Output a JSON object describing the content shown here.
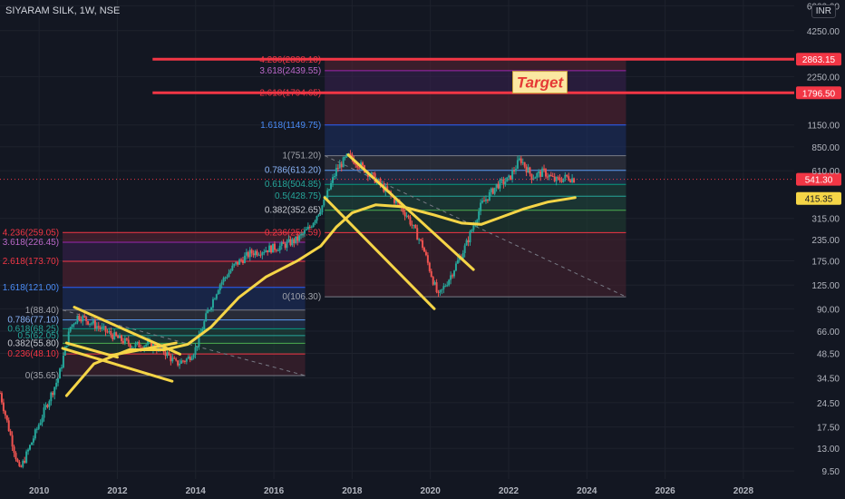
{
  "header": {
    "symbol": "SIYARAM SILK, 1W, NSE",
    "currency": "INR"
  },
  "colors": {
    "background": "#131722",
    "grid": "#1e222d",
    "candle_up": "#26a69a",
    "candle_down": "#ef5350",
    "annotation": "#f5d547",
    "target_line": "#f23645",
    "price_tag": "#f23645",
    "ma_tag": "#f5d547"
  },
  "chart_data": {
    "type": "candlestick",
    "scale": "log",
    "xlim": [
      2009.0,
      2029.3
    ],
    "ylim": [
      8.5,
      6500
    ],
    "x_ticks": [
      "2010",
      "2012",
      "2014",
      "2016",
      "2018",
      "2020",
      "2022",
      "2024",
      "2026",
      "2028"
    ],
    "x_tick_values": [
      2010,
      2012,
      2014,
      2016,
      2018,
      2020,
      2022,
      2024,
      2026,
      2028
    ],
    "y_ticks": [
      "6000.00",
      "4250.00",
      "2250.00",
      "1150.00",
      "850.00",
      "610.00",
      "315.00",
      "235.00",
      "175.00",
      "125.00",
      "90.00",
      "66.00",
      "48.50",
      "34.50",
      "24.50",
      "17.50",
      "13.00",
      "9.50"
    ],
    "y_tick_values": [
      6000,
      4250,
      2250,
      1150,
      850,
      610,
      315,
      235,
      175,
      125,
      90,
      66,
      48.5,
      34.5,
      24.5,
      17.5,
      13,
      9.5
    ],
    "price_path": [
      [
        2009.0,
        28
      ],
      [
        2009.2,
        18
      ],
      [
        2009.5,
        9.5
      ],
      [
        2009.8,
        14
      ],
      [
        2010.2,
        24
      ],
      [
        2010.5,
        35
      ],
      [
        2010.8,
        70
      ],
      [
        2011.0,
        82
      ],
      [
        2011.3,
        75
      ],
      [
        2011.6,
        68
      ],
      [
        2012.0,
        60
      ],
      [
        2012.4,
        54
      ],
      [
        2012.8,
        55
      ],
      [
        2013.2,
        50
      ],
      [
        2013.5,
        42
      ],
      [
        2013.8,
        45
      ],
      [
        2014.0,
        52
      ],
      [
        2014.3,
        85
      ],
      [
        2014.6,
        125
      ],
      [
        2015.0,
        165
      ],
      [
        2015.4,
        195
      ],
      [
        2015.8,
        205
      ],
      [
        2016.2,
        215
      ],
      [
        2016.6,
        235
      ],
      [
        2016.9,
        275
      ],
      [
        2017.3,
        400
      ],
      [
        2017.6,
        620
      ],
      [
        2017.9,
        751
      ],
      [
        2018.2,
        660
      ],
      [
        2018.6,
        540
      ],
      [
        2019.0,
        430
      ],
      [
        2019.4,
        330
      ],
      [
        2019.8,
        215
      ],
      [
        2020.2,
        106
      ],
      [
        2020.5,
        140
      ],
      [
        2020.9,
        215
      ],
      [
        2021.3,
        380
      ],
      [
        2021.7,
        500
      ],
      [
        2022.0,
        540
      ],
      [
        2022.3,
        720
      ],
      [
        2022.6,
        560
      ],
      [
        2022.9,
        600
      ],
      [
        2023.2,
        530
      ],
      [
        2023.5,
        560
      ],
      [
        2023.7,
        541
      ]
    ],
    "fib_levels_1": {
      "x_range": [
        2010.6,
        2016.8
      ],
      "levels": [
        {
          "label": "4.236(259.05)",
          "value": 259.05
        },
        {
          "label": "3.618(226.45)",
          "value": 226.45
        },
        {
          "label": "2.618(173.70)",
          "value": 173.7
        },
        {
          "label": "1.618(121.00)",
          "value": 121.0
        },
        {
          "label": "1(88.40)",
          "value": 88.4
        },
        {
          "label": "0.786(77.10)",
          "value": 77.1
        },
        {
          "label": "0.618(68.25)",
          "value": 68.25
        },
        {
          "label": "0.5(62.05)",
          "value": 62.05
        },
        {
          "label": "0.382(55.80)",
          "value": 55.8
        },
        {
          "label": "0.236(48.10)",
          "value": 48.1
        },
        {
          "label": "0(35.65)",
          "value": 35.65
        }
      ]
    },
    "fib_levels_2": {
      "x_range": [
        2017.3,
        2025.0
      ],
      "levels": [
        {
          "label": "4.236(2838.10)",
          "value": 2838.1
        },
        {
          "label": "3.618(2439.55)",
          "value": 2439.55
        },
        {
          "label": "2.618(1794.65)",
          "value": 1794.65
        },
        {
          "label": "1.618(1149.75)",
          "value": 1149.75
        },
        {
          "label": "1(751.20)",
          "value": 751.2
        },
        {
          "label": "0.786(613.20)",
          "value": 613.2
        },
        {
          "label": "0.618(504.85)",
          "value": 504.85
        },
        {
          "label": "0.5(428.75)",
          "value": 428.75
        },
        {
          "label": "0.382(352.65)",
          "value": 352.65
        },
        {
          "label": "0.236(258.59)",
          "value": 258.59
        },
        {
          "label": "0(106.30)",
          "value": 106.3
        }
      ]
    },
    "horizontal_lines": [
      {
        "value": 2863.15,
        "label": "2863.15"
      },
      {
        "value": 1796.5,
        "label": "1796.50"
      }
    ],
    "last_price": {
      "value": 541.3,
      "label": "541.30"
    },
    "ma_value": {
      "value": 415.35,
      "label": "415.35"
    },
    "annotation": {
      "text": "Target",
      "x": 2022.8,
      "y": 2080
    }
  }
}
